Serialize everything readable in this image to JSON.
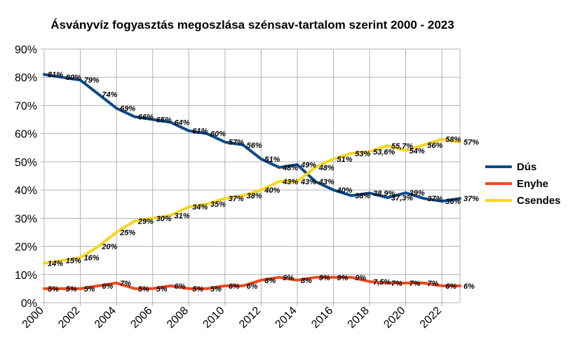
{
  "chart_data": {
    "type": "line",
    "title": "Ásványvíz fogyasztás megoszlása szénsav-tartalom szerint 2000 - 2023",
    "xlabel": "",
    "ylabel": "",
    "x": [
      2000,
      2001,
      2002,
      2003,
      2004,
      2005,
      2006,
      2007,
      2008,
      2009,
      2010,
      2011,
      2012,
      2013,
      2014,
      2015,
      2016,
      2017,
      2018,
      2019,
      2020,
      2021,
      2022,
      2023
    ],
    "xlim": [
      2000,
      2023
    ],
    "ylim": [
      0,
      90
    ],
    "xticks": [
      "2000",
      "2002",
      "2004",
      "2006",
      "2008",
      "2010",
      "2012",
      "2014",
      "2016",
      "2018",
      "2020",
      "2022"
    ],
    "yticks": [
      "0%",
      "10%",
      "20%",
      "30%",
      "40%",
      "50%",
      "60%",
      "70%",
      "80%",
      "90%"
    ],
    "grid": true,
    "legend_position": "right",
    "series": [
      {
        "name": "Dús",
        "color": "#0d4a87",
        "values": [
          81,
          80,
          79,
          74,
          69,
          66,
          65,
          64,
          61,
          60,
          57,
          56,
          51,
          48,
          49,
          43,
          40,
          38,
          38.9,
          37.3,
          39,
          37,
          36,
          37
        ],
        "labels": [
          "81%",
          "80%",
          "79%",
          "74%",
          "69%",
          "66%",
          "65%",
          "64%",
          "61%",
          "60%",
          "57%",
          "56%",
          "51%",
          "48%",
          "49%",
          "43%",
          "40%",
          "38%",
          "38,9%",
          "37,3%",
          "39%",
          "37%",
          "36%",
          "37%"
        ]
      },
      {
        "name": "Enyhe",
        "color": "#ee4a1b",
        "values": [
          5,
          5,
          5,
          6,
          7,
          5,
          5,
          6,
          5,
          5,
          6,
          6,
          8,
          9,
          8,
          9,
          9,
          9,
          7.5,
          7,
          7,
          7,
          6,
          6
        ],
        "labels": [
          "5%",
          "5%",
          "5%",
          "6%",
          "7%",
          "5%",
          "5%",
          "6%",
          "5%",
          "5%",
          "6%",
          "6%",
          "8%",
          "9%",
          "8%",
          "9%",
          "9%",
          "9%",
          "7,5%",
          "7%",
          "7%",
          "7%",
          "6%",
          "6%"
        ]
      },
      {
        "name": "Csendes",
        "color": "#f9d41c",
        "values": [
          14,
          15,
          16,
          20,
          25,
          29,
          30,
          31,
          34,
          35,
          37,
          38,
          40,
          43,
          43,
          48,
          51,
          53,
          53.6,
          55.7,
          54,
          56,
          58,
          57
        ],
        "labels": [
          "14%",
          "15%",
          "16%",
          "20%",
          "25%",
          "29%",
          "30%",
          "31%",
          "34%",
          "35%",
          "37%",
          "38%",
          "40%",
          "43%",
          "43%",
          "48%",
          "51%",
          "53%",
          "53,6%",
          "55,7%",
          "54%",
          "56%",
          "58%",
          "57%"
        ]
      }
    ]
  }
}
